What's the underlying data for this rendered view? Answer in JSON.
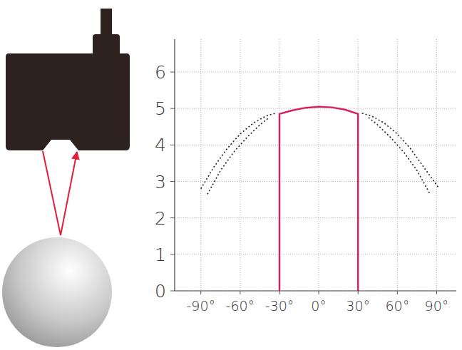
{
  "chart_data": {
    "type": "line",
    "xlim": [
      -110,
      105
    ],
    "ylim": [
      0,
      6.9
    ],
    "xticks": [
      {
        "value": -90,
        "label": "-90°"
      },
      {
        "value": -60,
        "label": "-60°"
      },
      {
        "value": -30,
        "label": "-30°"
      },
      {
        "value": 0,
        "label": "0°"
      },
      {
        "value": 30,
        "label": "30°"
      },
      {
        "value": 60,
        "label": "60°"
      },
      {
        "value": 90,
        "label": "90°"
      }
    ],
    "yticks": [
      0,
      1,
      2,
      3,
      4,
      5,
      6
    ],
    "grid": true,
    "series": [
      {
        "color": "#d81e5b",
        "line_style": "solid",
        "x": [
          -30,
          -30,
          -20,
          -10,
          0,
          10,
          20,
          30,
          30
        ],
        "values": [
          0,
          4.85,
          4.95,
          5.02,
          5.05,
          5.03,
          4.97,
          4.85,
          0
        ]
      },
      {
        "color": "#222222",
        "line_style": "dotted",
        "x": [
          -90,
          -80,
          -70,
          -60,
          -50,
          -40,
          -33,
          0,
          33,
          40,
          50,
          60,
          70,
          80,
          92
        ],
        "values": [
          2.8,
          3.4,
          3.9,
          4.3,
          4.6,
          4.8,
          4.87,
          null,
          4.87,
          4.8,
          4.6,
          4.3,
          3.9,
          3.4,
          2.8
        ]
      },
      {
        "color": "#222222",
        "line_style": "dotted",
        "x": [
          -85,
          -75,
          -65,
          -55,
          -45,
          -38,
          0,
          38,
          45,
          55,
          65,
          75,
          85
        ],
        "values": [
          2.65,
          3.3,
          3.8,
          4.2,
          4.55,
          4.75,
          null,
          4.75,
          4.55,
          4.2,
          3.8,
          3.3,
          2.65
        ]
      }
    ]
  }
}
